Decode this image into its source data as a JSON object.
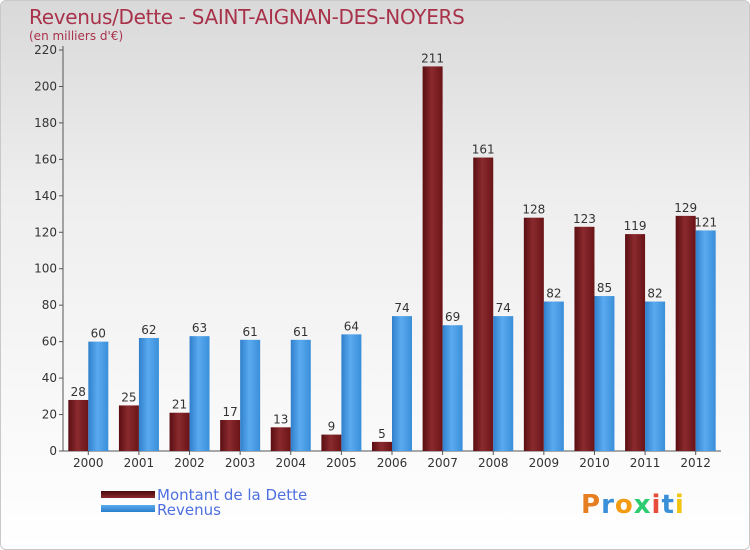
{
  "title": "Revenus/Dette - SAINT-AIGNAN-DES-NOYERS",
  "subtitle": "(en milliers d'€)",
  "colors": {
    "debt": "#7a1a1e",
    "revenue": "#3a8fd9",
    "title": "#a8324a",
    "legend_text": "#4f6fe0"
  },
  "chart_data": {
    "type": "bar",
    "categories": [
      "2000",
      "2001",
      "2002",
      "2003",
      "2004",
      "2005",
      "2006",
      "2007",
      "2008",
      "2009",
      "2010",
      "2011",
      "2012"
    ],
    "series": [
      {
        "name": "Montant de la Dette",
        "values": [
          28,
          25,
          21,
          17,
          13,
          9,
          5,
          211,
          161,
          128,
          123,
          119,
          129
        ]
      },
      {
        "name": "Revenus",
        "values": [
          60,
          62,
          63,
          61,
          61,
          64,
          74,
          69,
          74,
          82,
          85,
          82,
          121
        ]
      }
    ],
    "ylim": [
      0,
      220
    ],
    "yticks": [
      0,
      20,
      40,
      60,
      80,
      100,
      120,
      140,
      160,
      180,
      200,
      220
    ],
    "grid": false,
    "legend_position": "bottom-left"
  },
  "legend": {
    "debt_label": "Montant de la Dette",
    "revenue_label": "Revenus"
  },
  "logo": {
    "letters": [
      "P",
      "r",
      "o",
      "x",
      "i",
      "t",
      "i"
    ],
    "colors": [
      "#e67e22",
      "#3a8fd9",
      "#f39c12",
      "#2ecc71",
      "#e74c3c",
      "#3a8fd9",
      "#f1c40f"
    ]
  }
}
